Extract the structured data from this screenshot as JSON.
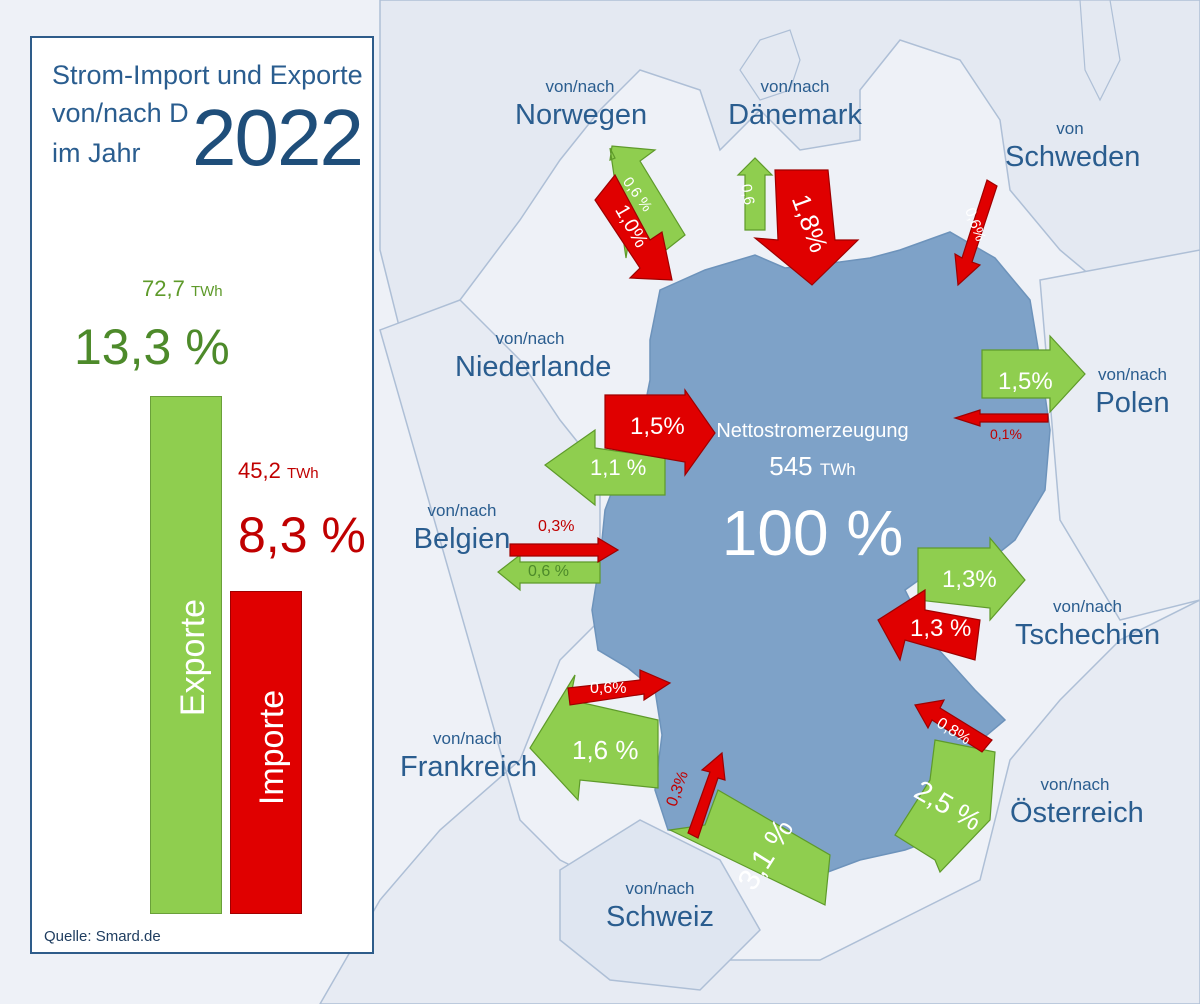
{
  "colors": {
    "export": "#8fce4f",
    "import": "#e00000",
    "germany": "#7ea2c8",
    "title": "#2a5d8f",
    "background": "#eef1f7"
  },
  "panel": {
    "title_line1": "Strom-Import und Exporte",
    "title_line2": "von/nach D",
    "title_line3": "im Jahr",
    "year": "2022",
    "export_twh_value": "72,7",
    "twh_unit": "TWh",
    "export_pct": "13,3 %",
    "import_twh_value": "45,2",
    "import_pct": "8,3 %",
    "export_label": "Exporte",
    "import_label": "Importe",
    "source": "Quelle: Smard.de"
  },
  "chart_data": {
    "type": "bar",
    "categories": [
      "Exporte",
      "Importe"
    ],
    "values_twh": [
      72.7,
      45.2
    ],
    "values_pct": [
      13.3,
      8.3
    ]
  },
  "center": {
    "label": "Nettostromerzeugung",
    "twh_value": "545",
    "twh_unit": "TWh",
    "pct": "100 %"
  },
  "countries": [
    {
      "key": "norwegen",
      "prefix": "von/nach",
      "name": "Norwegen",
      "export": "0,6 %",
      "import": "1,0%"
    },
    {
      "key": "daenemark",
      "prefix": "von/nach",
      "name": "Dänemark",
      "export": "0,6",
      "import": "1,8%"
    },
    {
      "key": "schweden",
      "prefix": "von",
      "name": "Schweden",
      "import": "0,6%"
    },
    {
      "key": "polen",
      "prefix": "von/nach",
      "name": "Polen",
      "export": "1,5%",
      "import": "0,1%"
    },
    {
      "key": "niederlande",
      "prefix": "von/nach",
      "name": "Niederlande",
      "export": "1,1 %",
      "import": "1,5%"
    },
    {
      "key": "belgien",
      "prefix": "von/nach",
      "name": "Belgien",
      "export": "0,6 %",
      "import": "0,3%"
    },
    {
      "key": "tschechien",
      "prefix": "von/nach",
      "name": "Tschechien",
      "export": "1,3%",
      "import": "1,3 %"
    },
    {
      "key": "frankreich",
      "prefix": "von/nach",
      "name": "Frankreich",
      "export": "1,6 %",
      "import": "0,6%"
    },
    {
      "key": "schweiz",
      "prefix": "von/nach",
      "name": "Schweiz",
      "export": "3,1 %",
      "import": "0,3%"
    },
    {
      "key": "oesterreich",
      "prefix": "von/nach",
      "name": "Österreich",
      "export": "2,5 %",
      "import": "0,8%"
    }
  ]
}
